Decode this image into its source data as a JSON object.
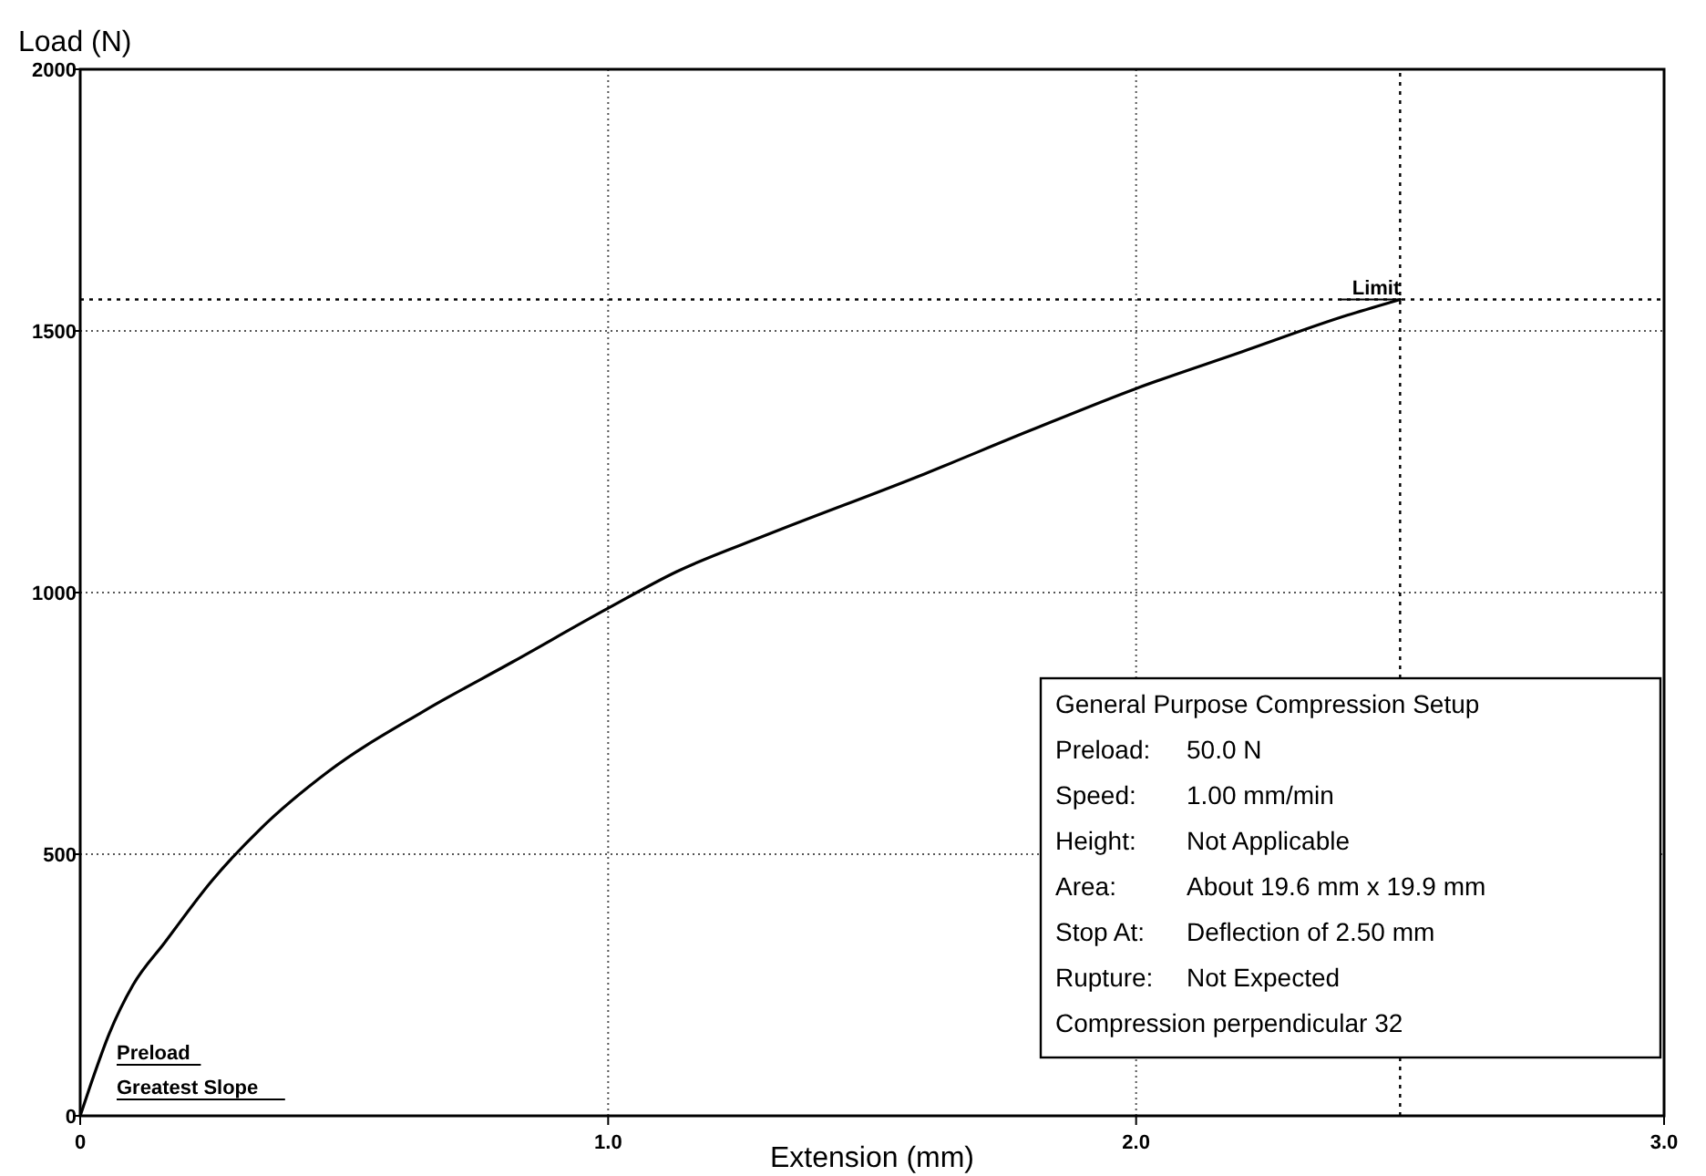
{
  "chart_data": {
    "type": "line",
    "xlabel": "Extension (mm)",
    "ylabel": "Load (N)",
    "xlim": [
      0,
      3
    ],
    "ylim": [
      0,
      2000
    ],
    "xticks": [
      0,
      {
        "value": 1,
        "label": "1.0"
      },
      {
        "value": 2,
        "label": "2.0"
      },
      {
        "value": 3,
        "label": "3.0"
      }
    ],
    "yticks": [
      0,
      500,
      1000,
      1500,
      2000
    ],
    "grid": true,
    "series": [
      {
        "color": "#000000",
        "x": [
          0,
          0.02,
          0.055,
          0.1,
          0.16,
          0.25,
          0.34,
          0.47,
          0.65,
          0.82,
          1.0,
          1.13,
          1.3,
          1.59,
          1.8,
          2.0,
          2.2,
          2.4,
          2.5
        ],
        "values": [
          0,
          60,
          157,
          250,
          331,
          450,
          547,
          658,
          773,
          868,
          970,
          1040,
          1110,
          1223,
          1310,
          1390,
          1460,
          1530,
          1560
        ]
      }
    ],
    "ref_lines": [
      {
        "axis": "y",
        "value": 1560,
        "line_style": "dotted"
      },
      {
        "axis": "x",
        "value": 2.5,
        "line_style": "dotted"
      }
    ],
    "annotations": [
      "Limit",
      "Preload",
      "Greatest Slope",
      "General Purpose Compression Setup",
      "Preload: 50.0 N",
      "Speed: 1.00 mm/min",
      "Height: Not Applicable",
      "Area: About 19.6 mm x 19.9 mm",
      "Stop At: Deflection of 2.50 mm",
      "Rupture: Not Expected",
      "Compression perpendicular 32"
    ]
  }
}
